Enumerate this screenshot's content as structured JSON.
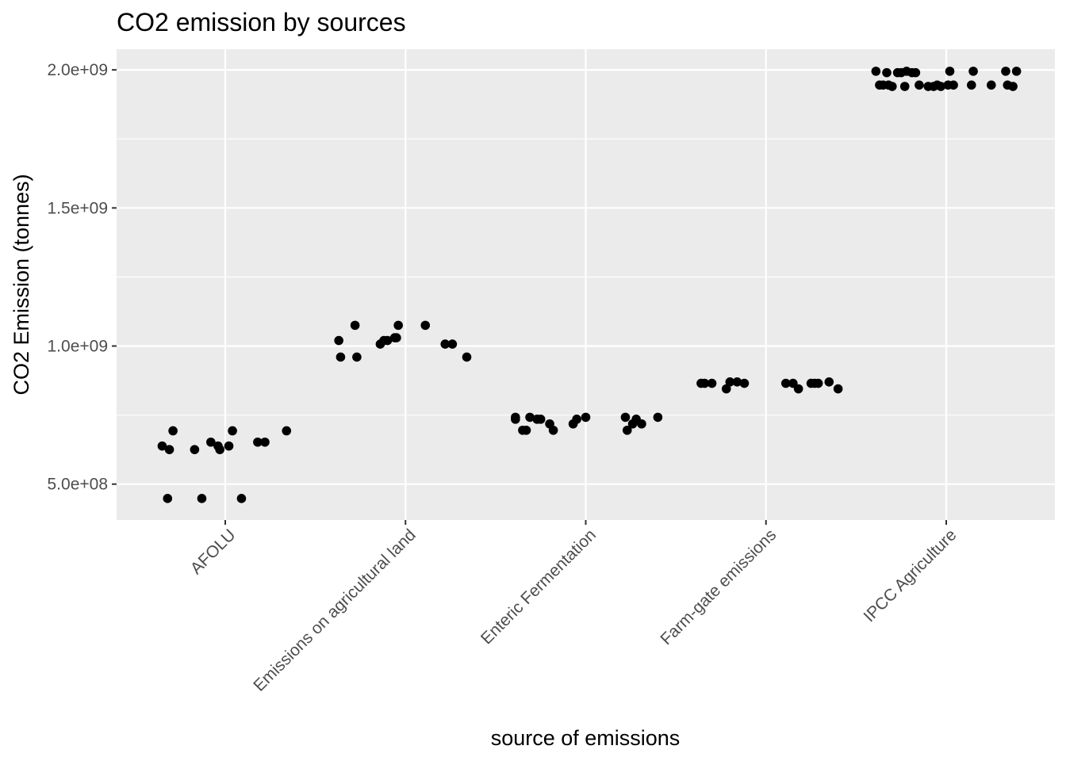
{
  "chart_data": {
    "type": "scatter",
    "title": "CO2 emission by sources",
    "xlabel": "source of emissions",
    "ylabel": "CO2 Emission (tonnes)",
    "categories": [
      "AFOLU",
      "Emissions on agricultural land",
      "Enteric Fermentation",
      "Farm-gate emissions",
      "IPCC Agriculture"
    ],
    "yticks": [
      500000000,
      1000000000,
      1500000000,
      2000000000
    ],
    "ytick_labels": [
      "5.0e+08",
      "1.0e+09",
      "1.5e+09",
      "2.0e+09"
    ],
    "ylim": [
      370000000,
      2075000000
    ],
    "grid": true,
    "series": [
      {
        "category": "AFOLU",
        "points": [
          {
            "offset": -0.35,
            "y": 638000000
          },
          {
            "offset": -0.32,
            "y": 448000000
          },
          {
            "offset": -0.31,
            "y": 625000000
          },
          {
            "offset": -0.29,
            "y": 693000000
          },
          {
            "offset": -0.17,
            "y": 625000000
          },
          {
            "offset": -0.13,
            "y": 448000000
          },
          {
            "offset": -0.08,
            "y": 652000000
          },
          {
            "offset": -0.04,
            "y": 638000000
          },
          {
            "offset": -0.03,
            "y": 625000000
          },
          {
            "offset": 0.02,
            "y": 638000000
          },
          {
            "offset": 0.04,
            "y": 693000000
          },
          {
            "offset": 0.09,
            "y": 448000000
          },
          {
            "offset": 0.18,
            "y": 652000000
          },
          {
            "offset": 0.22,
            "y": 652000000
          },
          {
            "offset": 0.34,
            "y": 693000000
          }
        ]
      },
      {
        "category": "Emissions on agricultural land",
        "points": [
          {
            "offset": -0.37,
            "y": 1020000000
          },
          {
            "offset": -0.36,
            "y": 960000000
          },
          {
            "offset": -0.28,
            "y": 1075000000
          },
          {
            "offset": -0.27,
            "y": 960000000
          },
          {
            "offset": -0.14,
            "y": 1007000000
          },
          {
            "offset": -0.12,
            "y": 1020000000
          },
          {
            "offset": -0.1,
            "y": 1020000000
          },
          {
            "offset": -0.06,
            "y": 1030000000
          },
          {
            "offset": -0.05,
            "y": 1030000000
          },
          {
            "offset": -0.04,
            "y": 1075000000
          },
          {
            "offset": 0.11,
            "y": 1075000000
          },
          {
            "offset": 0.22,
            "y": 1007000000
          },
          {
            "offset": 0.26,
            "y": 1007000000
          },
          {
            "offset": 0.34,
            "y": 960000000
          }
        ]
      },
      {
        "category": "Enteric Fermentation",
        "points": [
          {
            "offset": -0.39,
            "y": 735000000
          },
          {
            "offset": -0.39,
            "y": 742000000
          },
          {
            "offset": -0.35,
            "y": 695000000
          },
          {
            "offset": -0.33,
            "y": 695000000
          },
          {
            "offset": -0.31,
            "y": 742000000
          },
          {
            "offset": -0.27,
            "y": 735000000
          },
          {
            "offset": -0.25,
            "y": 735000000
          },
          {
            "offset": -0.2,
            "y": 718000000
          },
          {
            "offset": -0.18,
            "y": 695000000
          },
          {
            "offset": -0.07,
            "y": 718000000
          },
          {
            "offset": -0.05,
            "y": 735000000
          },
          {
            "offset": 0.0,
            "y": 742000000
          },
          {
            "offset": 0.22,
            "y": 742000000
          },
          {
            "offset": 0.23,
            "y": 695000000
          },
          {
            "offset": 0.26,
            "y": 718000000
          },
          {
            "offset": 0.28,
            "y": 735000000
          },
          {
            "offset": 0.31,
            "y": 718000000
          },
          {
            "offset": 0.4,
            "y": 742000000
          }
        ]
      },
      {
        "category": "Farm-gate emissions",
        "points": [
          {
            "offset": -0.36,
            "y": 865000000
          },
          {
            "offset": -0.34,
            "y": 865000000
          },
          {
            "offset": -0.3,
            "y": 865000000
          },
          {
            "offset": -0.22,
            "y": 845000000
          },
          {
            "offset": -0.2,
            "y": 870000000
          },
          {
            "offset": -0.16,
            "y": 870000000
          },
          {
            "offset": -0.12,
            "y": 865000000
          },
          {
            "offset": 0.11,
            "y": 865000000
          },
          {
            "offset": 0.15,
            "y": 865000000
          },
          {
            "offset": 0.18,
            "y": 845000000
          },
          {
            "offset": 0.25,
            "y": 865000000
          },
          {
            "offset": 0.27,
            "y": 865000000
          },
          {
            "offset": 0.29,
            "y": 865000000
          },
          {
            "offset": 0.35,
            "y": 870000000
          },
          {
            "offset": 0.4,
            "y": 845000000
          }
        ]
      },
      {
        "category": "IPCC Agriculture",
        "points": [
          {
            "offset": -0.39,
            "y": 1995000000
          },
          {
            "offset": -0.37,
            "y": 1945000000
          },
          {
            "offset": -0.35,
            "y": 1945000000
          },
          {
            "offset": -0.33,
            "y": 1990000000
          },
          {
            "offset": -0.32,
            "y": 1945000000
          },
          {
            "offset": -0.3,
            "y": 1940000000
          },
          {
            "offset": -0.27,
            "y": 1990000000
          },
          {
            "offset": -0.25,
            "y": 1990000000
          },
          {
            "offset": -0.23,
            "y": 1940000000
          },
          {
            "offset": -0.22,
            "y": 1995000000
          },
          {
            "offset": -0.19,
            "y": 1990000000
          },
          {
            "offset": -0.17,
            "y": 1990000000
          },
          {
            "offset": -0.15,
            "y": 1945000000
          },
          {
            "offset": -0.1,
            "y": 1940000000
          },
          {
            "offset": -0.07,
            "y": 1940000000
          },
          {
            "offset": -0.05,
            "y": 1945000000
          },
          {
            "offset": -0.03,
            "y": 1940000000
          },
          {
            "offset": 0.01,
            "y": 1945000000
          },
          {
            "offset": 0.02,
            "y": 1995000000
          },
          {
            "offset": 0.04,
            "y": 1945000000
          },
          {
            "offset": 0.14,
            "y": 1945000000
          },
          {
            "offset": 0.15,
            "y": 1995000000
          },
          {
            "offset": 0.25,
            "y": 1945000000
          },
          {
            "offset": 0.33,
            "y": 1995000000
          },
          {
            "offset": 0.34,
            "y": 1945000000
          },
          {
            "offset": 0.37,
            "y": 1940000000
          },
          {
            "offset": 0.39,
            "y": 1995000000
          }
        ]
      }
    ]
  }
}
